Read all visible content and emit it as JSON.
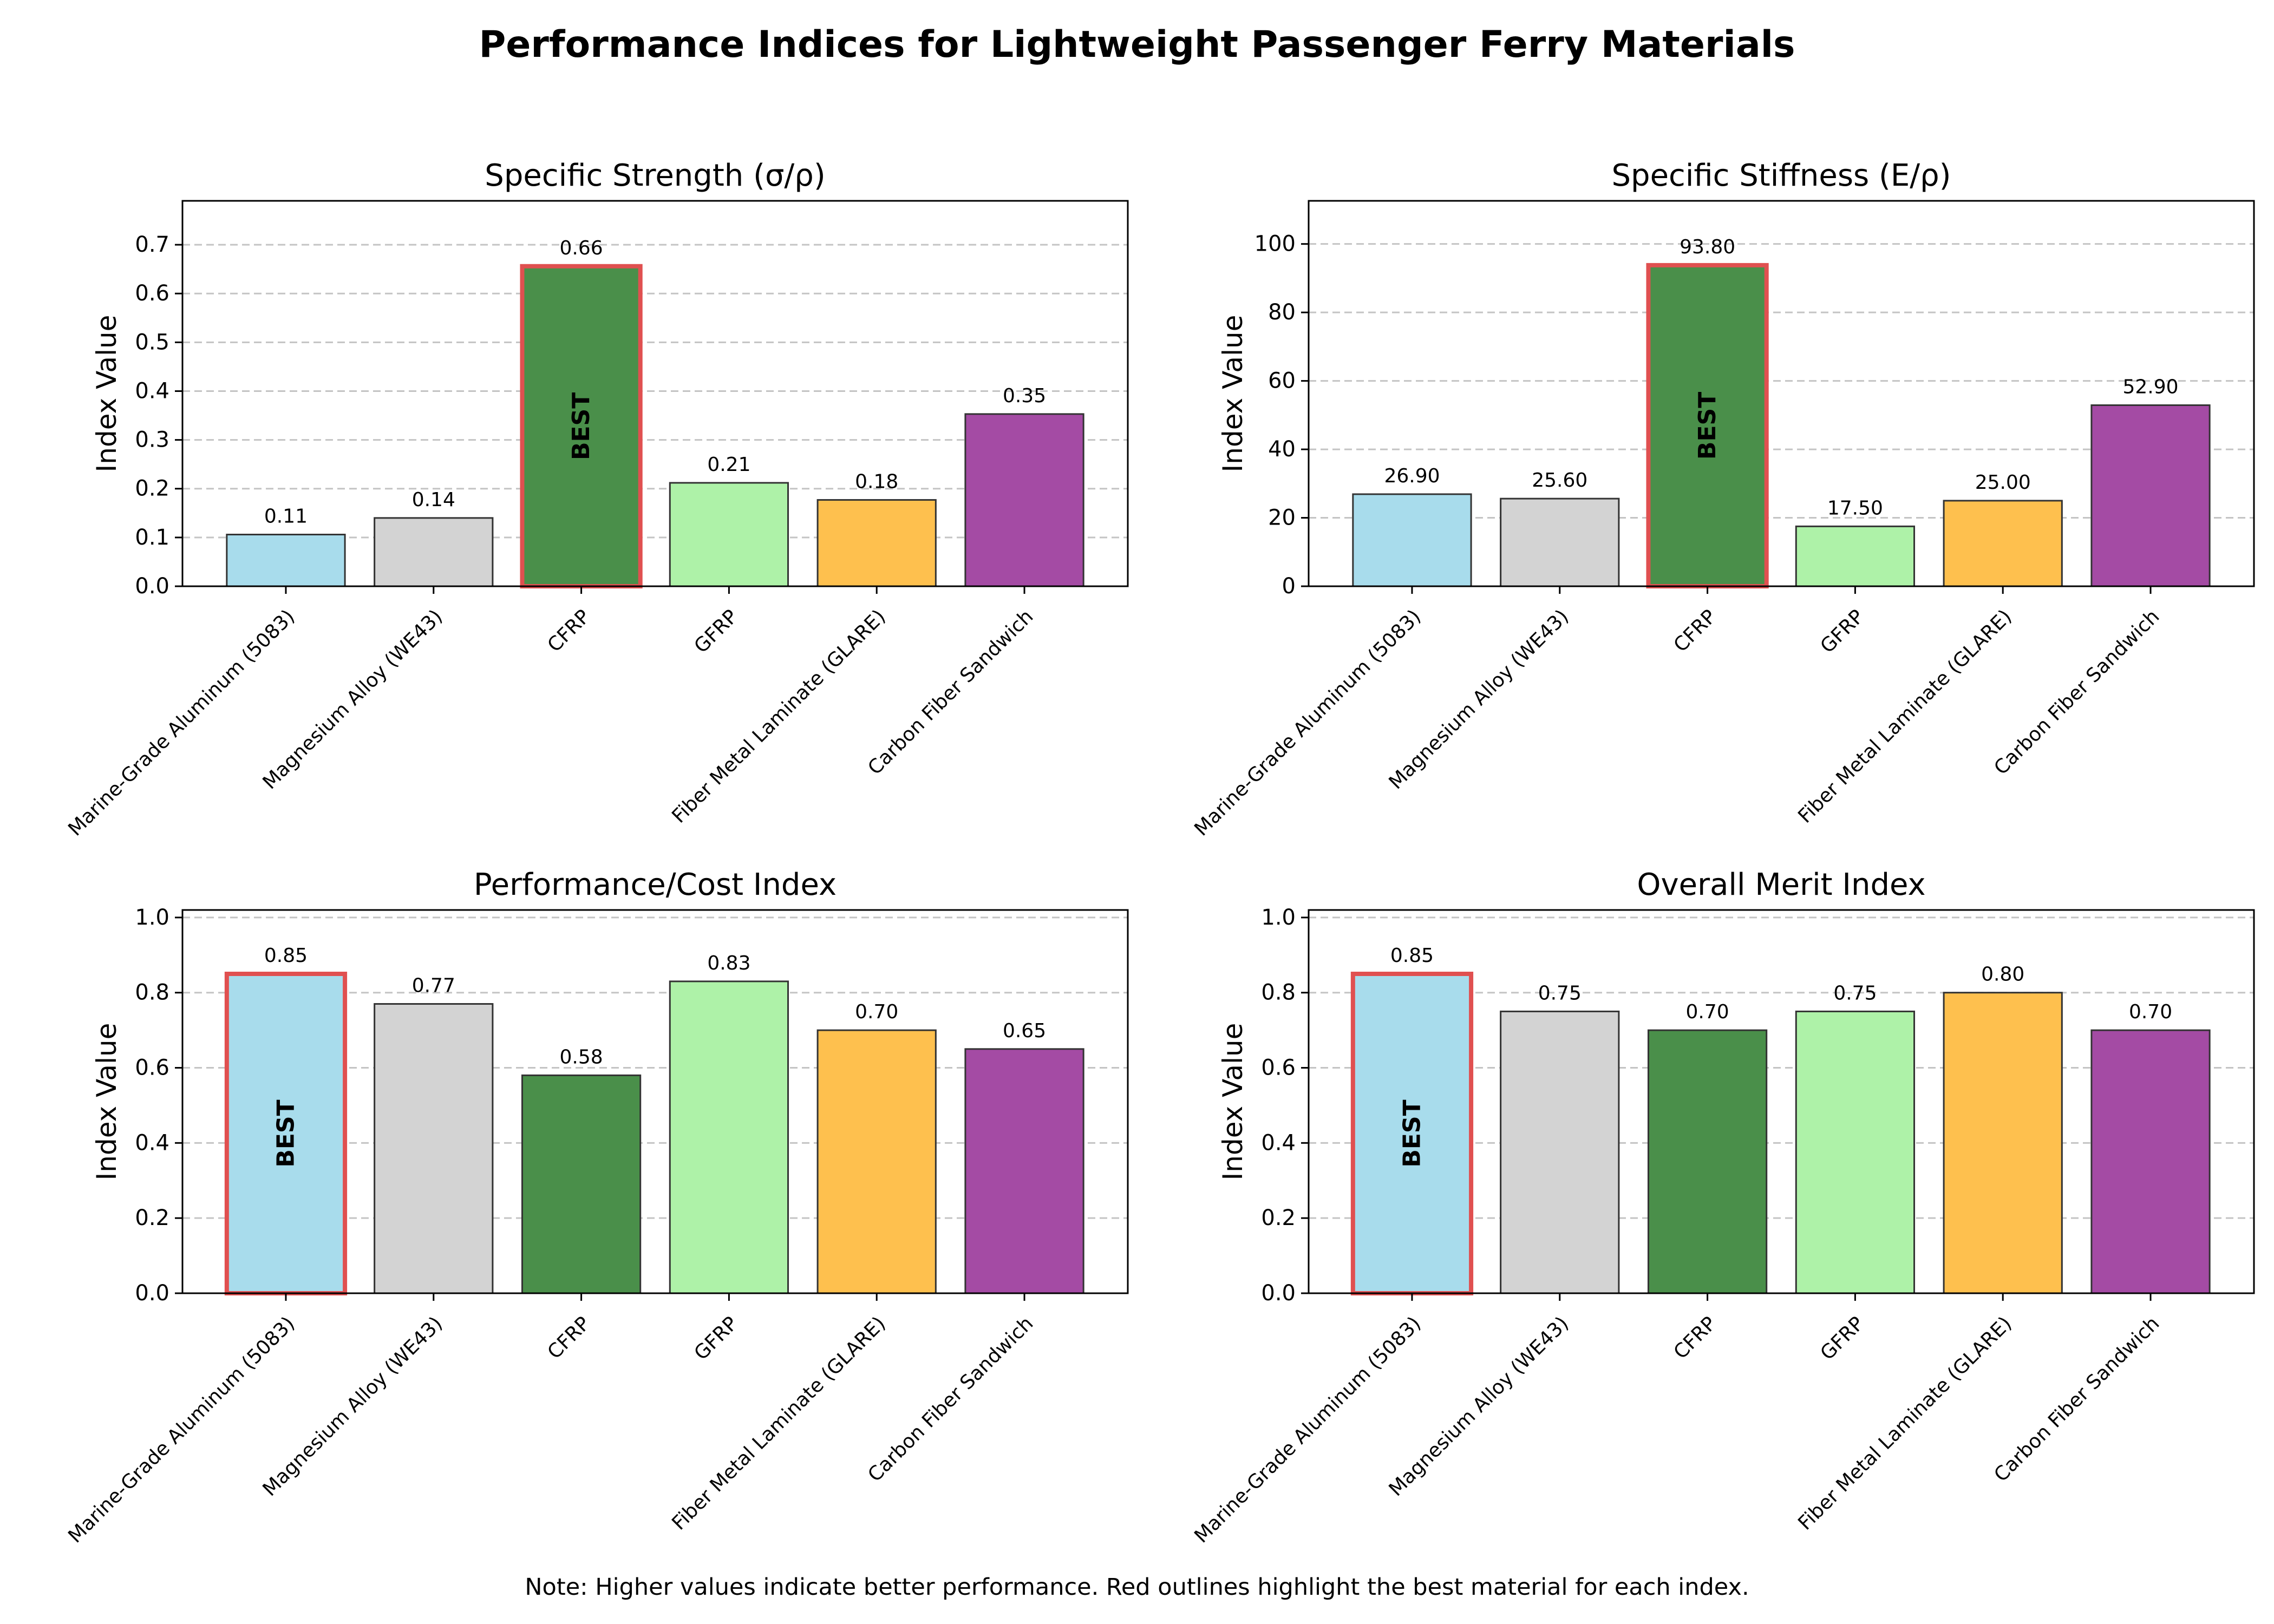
{
  "figure": {
    "title": "Performance Indices for Lightweight Passenger Ferry Materials",
    "note": "Note: Higher values indicate better performance. Red outlines highlight the best material for each index."
  },
  "colors": {
    "bars": [
      "#a8dcec",
      "#d3d3d3",
      "#4a8f4a",
      "#aef2a8",
      "#fec04e",
      "#a44ba4"
    ],
    "best_outline": "#e05050",
    "best_text": "#8b0000",
    "grid": "#c4c4c4"
  },
  "chart_data": [
    {
      "type": "bar",
      "title": "Specific Strength (σ/ρ)",
      "xlabel": "",
      "ylabel": "Index Value",
      "categories": [
        "Marine-Grade Aluminum (5083)",
        "Magnesium Alloy (WE43)",
        "CFRP",
        "GFRP",
        "Fiber Metal Laminate (GLARE)",
        "Carbon Fiber Sandwich"
      ],
      "values": [
        0.106,
        0.14,
        0.656,
        0.212,
        0.177,
        0.353
      ],
      "value_labels": [
        "0.11",
        "0.14",
        "0.66",
        "0.21",
        "0.18",
        "0.35"
      ],
      "ylim": [
        0,
        0.79
      ],
      "yticks": [
        0,
        0.1,
        0.2,
        0.3,
        0.4,
        0.5,
        0.6,
        0.7
      ],
      "ytick_labels": [
        "0.0",
        "0.1",
        "0.2",
        "0.3",
        "0.4",
        "0.5",
        "0.6",
        "0.7"
      ],
      "best_index": 2,
      "best_label": "BEST",
      "grid": true
    },
    {
      "type": "bar",
      "title": "Specific Stiffness (E/ρ)",
      "xlabel": "",
      "ylabel": "Index Value",
      "categories": [
        "Marine-Grade Aluminum (5083)",
        "Magnesium Alloy (WE43)",
        "CFRP",
        "GFRP",
        "Fiber Metal Laminate (GLARE)",
        "Carbon Fiber Sandwich"
      ],
      "values": [
        26.9,
        25.6,
        93.8,
        17.5,
        25.0,
        52.9
      ],
      "value_labels": [
        "26.90",
        "25.60",
        "93.80",
        "17.50",
        "25.00",
        "52.90"
      ],
      "ylim": [
        0,
        112.6
      ],
      "yticks": [
        0,
        20,
        40,
        60,
        80,
        100
      ],
      "ytick_labels": [
        "0",
        "20",
        "40",
        "60",
        "80",
        "100"
      ],
      "best_index": 2,
      "best_label": "BEST",
      "grid": true
    },
    {
      "type": "bar",
      "title": "Performance/Cost Index",
      "xlabel": "",
      "ylabel": "Index Value",
      "categories": [
        "Marine-Grade Aluminum (5083)",
        "Magnesium Alloy (WE43)",
        "CFRP",
        "GFRP",
        "Fiber Metal Laminate (GLARE)",
        "Carbon Fiber Sandwich"
      ],
      "values": [
        0.85,
        0.77,
        0.58,
        0.83,
        0.7,
        0.65
      ],
      "value_labels": [
        "0.85",
        "0.77",
        "0.58",
        "0.83",
        "0.70",
        "0.65"
      ],
      "ylim": [
        0,
        1.02
      ],
      "yticks": [
        0,
        0.2,
        0.4,
        0.6,
        0.8,
        1.0
      ],
      "ytick_labels": [
        "0.0",
        "0.2",
        "0.4",
        "0.6",
        "0.8",
        "1.0"
      ],
      "best_index": 0,
      "best_label": "BEST",
      "grid": true
    },
    {
      "type": "bar",
      "title": "Overall Merit Index",
      "xlabel": "",
      "ylabel": "Index Value",
      "categories": [
        "Marine-Grade Aluminum (5083)",
        "Magnesium Alloy (WE43)",
        "CFRP",
        "GFRP",
        "Fiber Metal Laminate (GLARE)",
        "Carbon Fiber Sandwich"
      ],
      "values": [
        0.85,
        0.75,
        0.7,
        0.75,
        0.8,
        0.7
      ],
      "value_labels": [
        "0.85",
        "0.75",
        "0.70",
        "0.75",
        "0.80",
        "0.70"
      ],
      "ylim": [
        0,
        1.02
      ],
      "yticks": [
        0,
        0.2,
        0.4,
        0.6,
        0.8,
        1.0
      ],
      "ytick_labels": [
        "0.0",
        "0.2",
        "0.4",
        "0.6",
        "0.8",
        "1.0"
      ],
      "best_index": 0,
      "best_label": "BEST",
      "grid": true
    }
  ]
}
